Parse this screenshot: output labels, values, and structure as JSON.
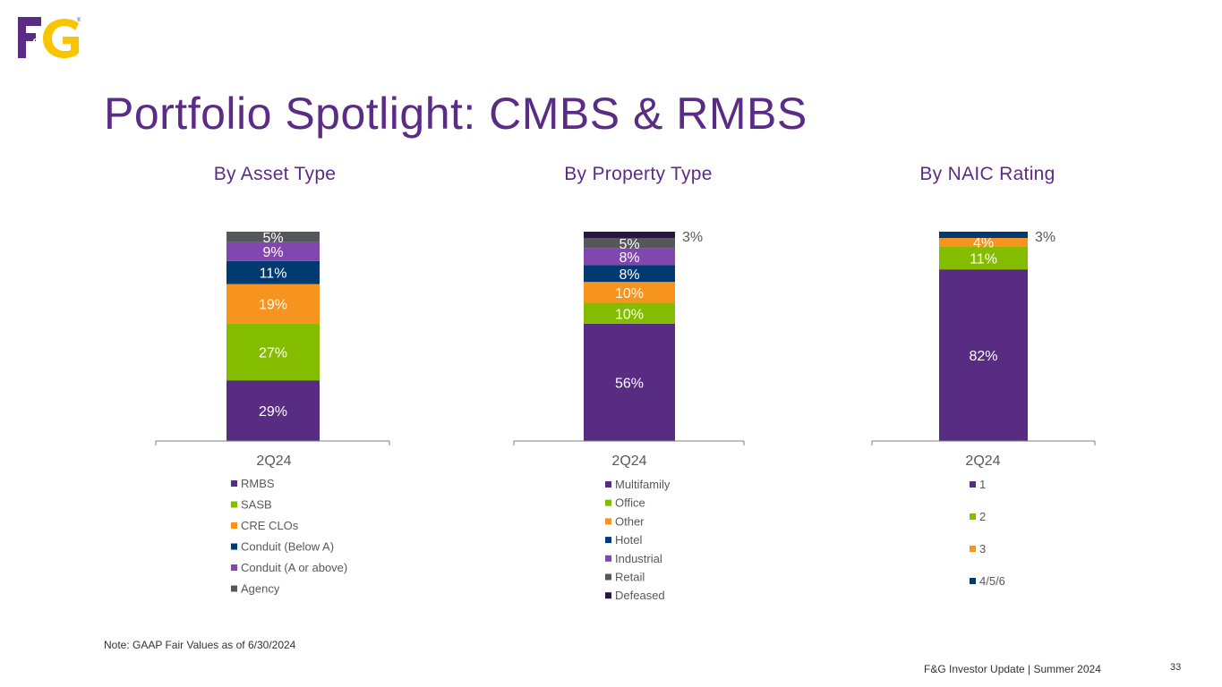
{
  "logo": {
    "text_left": "F",
    "text_mid": "&",
    "text_right": "G",
    "registered": "®",
    "colors": {
      "purple": "#5b2c86",
      "yellow": "#f7c600"
    }
  },
  "title": "Portfolio Spotlight: CMBS & RMBS",
  "note": "Note: GAAP Fair Values as of 6/30/2024",
  "footer": "F&G Investor Update | Summer 2024",
  "page_number": "33",
  "colors": {
    "title": "#5b2c86",
    "axis": "#7f7f7f",
    "legend_text": "#595959",
    "label_light": "#ffffff",
    "label_dark": "#595959"
  },
  "chart_data": [
    {
      "type": "bar",
      "stacked": true,
      "title": "By Asset Type",
      "categories": [
        "2Q24"
      ],
      "series": [
        {
          "name": "RMBS",
          "values": [
            29
          ],
          "label": "29%",
          "color": "#582c83",
          "label_color": "#ffffff"
        },
        {
          "name": "SASB",
          "values": [
            27
          ],
          "label": "27%",
          "color": "#84bd00",
          "label_color": "#ffffff"
        },
        {
          "name": "CRE CLOs",
          "values": [
            19
          ],
          "label": "19%",
          "color": "#f7941d",
          "label_color": "#ffffff"
        },
        {
          "name": "Conduit (Below A)",
          "values": [
            11
          ],
          "label": "11%",
          "color": "#003a70",
          "label_color": "#ffffff"
        },
        {
          "name": "Conduit (A or above)",
          "values": [
            9
          ],
          "label": "9%",
          "color": "#8246af",
          "label_color": "#ffffff"
        },
        {
          "name": "Agency",
          "values": [
            5
          ],
          "label": "5%",
          "color": "#54585a",
          "label_color": "#ffffff"
        }
      ],
      "legend_position": "bottom"
    },
    {
      "type": "bar",
      "stacked": true,
      "title": "By Property Type",
      "categories": [
        "2Q24"
      ],
      "series": [
        {
          "name": "Multifamily",
          "values": [
            56
          ],
          "label": "56%",
          "color": "#582c83",
          "label_color": "#ffffff"
        },
        {
          "name": "Office",
          "values": [
            10
          ],
          "label": "10%",
          "color": "#84bd00",
          "label_color": "#ffffff"
        },
        {
          "name": "Other",
          "values": [
            10
          ],
          "label": "10%",
          "color": "#f7941d",
          "label_color": "#ffffff"
        },
        {
          "name": "Hotel",
          "values": [
            8
          ],
          "label": "8%",
          "color": "#003a70",
          "label_color": "#ffffff"
        },
        {
          "name": "Industrial",
          "values": [
            8
          ],
          "label": "8%",
          "color": "#8246af",
          "label_color": "#ffffff"
        },
        {
          "name": "Retail",
          "values": [
            5
          ],
          "label": "5%",
          "color": "#54585a",
          "label_color": "#ffffff"
        },
        {
          "name": "Defeased",
          "values": [
            3
          ],
          "label": "3%",
          "color": "#2b1641",
          "label_color": "#595959",
          "label_outside": true
        }
      ],
      "legend_position": "bottom"
    },
    {
      "type": "bar",
      "stacked": true,
      "title": "By NAIC Rating",
      "categories": [
        "2Q24"
      ],
      "series": [
        {
          "name": "1",
          "values": [
            82
          ],
          "label": "82%",
          "color": "#582c83",
          "label_color": "#ffffff"
        },
        {
          "name": "2",
          "values": [
            11
          ],
          "label": "11%",
          "color": "#84bd00",
          "label_color": "#ffffff"
        },
        {
          "name": "3",
          "values": [
            4
          ],
          "label": "4%",
          "color": "#f7941d",
          "label_color": "#ffffff"
        },
        {
          "name": "4/5/6",
          "values": [
            3
          ],
          "label": "3%",
          "color": "#003a70",
          "label_color": "#595959",
          "label_outside": true
        }
      ],
      "legend_position": "bottom"
    }
  ]
}
